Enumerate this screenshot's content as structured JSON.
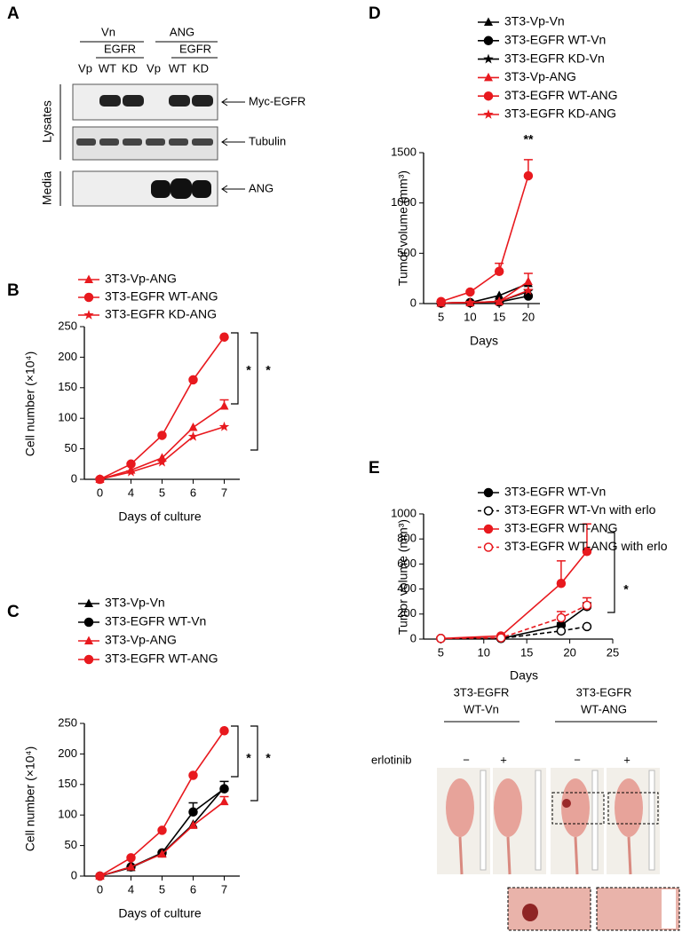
{
  "panel_a": {
    "letter": "A",
    "groups": [
      "Vn",
      "ANG"
    ],
    "subgroups": [
      "EGFR",
      "EGFR"
    ],
    "lanes": [
      "Vp",
      "WT",
      "KD",
      "Vp",
      "WT",
      "KD"
    ],
    "sections": [
      "Lysates",
      "Media"
    ],
    "bands": [
      "Myc-EGFR",
      "Tubulin",
      "ANG"
    ]
  },
  "chart_data": [
    {
      "type": "line",
      "panel": "B",
      "xlabel": "Days of culture",
      "ylabel": "Cell number (×10⁴)",
      "categories": [
        "0",
        "4",
        "5",
        "6",
        "7"
      ],
      "ylim": [
        0,
        250
      ],
      "yticks": [
        0,
        50,
        100,
        150,
        200,
        250
      ],
      "series": [
        {
          "name": "3T3-Vp-ANG",
          "color": "#e8191e",
          "marker": "triangle",
          "values": [
            0,
            15,
            35,
            85,
            120
          ],
          "errors": [
            null,
            null,
            null,
            null,
            10
          ]
        },
        {
          "name": "3T3-EGFR WT-ANG",
          "color": "#e8191e",
          "marker": "circle",
          "values": [
            0,
            25,
            72,
            163,
            233
          ],
          "errors": [
            null,
            null,
            null,
            null,
            null
          ]
        },
        {
          "name": "3T3-EGFR KD-ANG",
          "color": "#e8191e",
          "marker": "star",
          "values": [
            0,
            12,
            28,
            70,
            86
          ],
          "errors": [
            null,
            null,
            null,
            null,
            null
          ]
        }
      ],
      "annotations": [
        "*",
        "*"
      ]
    },
    {
      "type": "line",
      "panel": "C",
      "xlabel": "Days of culture",
      "ylabel": "Cell number (×10⁴)",
      "categories": [
        "0",
        "4",
        "5",
        "6",
        "7"
      ],
      "ylim": [
        0,
        250
      ],
      "yticks": [
        0,
        50,
        100,
        150,
        200,
        250
      ],
      "series": [
        {
          "name": "3T3-Vp-Vn",
          "color": "#000000",
          "marker": "triangle",
          "values": [
            0,
            14,
            37,
            85,
            145
          ],
          "errors": [
            null,
            null,
            null,
            null,
            null
          ]
        },
        {
          "name": "3T3-EGFR WT-Vn",
          "color": "#000000",
          "marker": "circle",
          "values": [
            0,
            15,
            38,
            105,
            143
          ],
          "errors": [
            null,
            null,
            null,
            15,
            12
          ]
        },
        {
          "name": "3T3-Vp-ANG",
          "color": "#e8191e",
          "marker": "triangle",
          "values": [
            0,
            15,
            36,
            83,
            122
          ],
          "errors": [
            null,
            null,
            null,
            null,
            8
          ]
        },
        {
          "name": "3T3-EGFR WT-ANG",
          "color": "#e8191e",
          "marker": "circle",
          "values": [
            0,
            30,
            75,
            165,
            238
          ],
          "errors": [
            null,
            null,
            null,
            null,
            null
          ]
        }
      ],
      "annotations": [
        "*",
        "*"
      ]
    },
    {
      "type": "line",
      "panel": "D",
      "xlabel": "Days",
      "ylabel": "Tumor volume (mm³)",
      "x": [
        5,
        10,
        15,
        20
      ],
      "xlim": [
        2,
        22
      ],
      "xticks": [
        5,
        10,
        15,
        20
      ],
      "ylim": [
        0,
        1500
      ],
      "yticks": [
        0,
        500,
        1000,
        1500
      ],
      "series": [
        {
          "name": "3T3-Vp-Vn",
          "color": "#000000",
          "marker": "triangle",
          "values": [
            5,
            10,
            80,
            200
          ],
          "errors": [
            null,
            null,
            null,
            null
          ]
        },
        {
          "name": "3T3-EGFR WT-Vn",
          "color": "#000000",
          "marker": "circle",
          "values": [
            5,
            10,
            15,
            75
          ],
          "errors": [
            null,
            null,
            null,
            null
          ]
        },
        {
          "name": "3T3-EGFR KD-Vn",
          "color": "#000000",
          "marker": "star",
          "values": [
            5,
            10,
            20,
            120
          ],
          "errors": [
            null,
            null,
            null,
            null
          ]
        },
        {
          "name": "3T3-Vp-ANG",
          "color": "#e8191e",
          "marker": "triangle",
          "values": [
            5,
            10,
            20,
            220
          ],
          "errors": [
            null,
            null,
            null,
            80
          ]
        },
        {
          "name": "3T3-EGFR WT-ANG",
          "color": "#e8191e",
          "marker": "circle",
          "values": [
            20,
            115,
            320,
            1270
          ],
          "errors": [
            null,
            null,
            80,
            160
          ]
        },
        {
          "name": "3T3-EGFR KD-ANG",
          "color": "#e8191e",
          "marker": "star",
          "values": [
            5,
            10,
            20,
            130
          ],
          "errors": [
            null,
            null,
            null,
            null
          ]
        }
      ],
      "annotations": [
        "**"
      ]
    },
    {
      "type": "line",
      "panel": "E",
      "xlabel": "Days",
      "ylabel": "Tumor volume (mm³)",
      "x": [
        5,
        12,
        19,
        22
      ],
      "xlim": [
        3,
        25
      ],
      "xticks": [
        5,
        10,
        15,
        20,
        25
      ],
      "ylim": [
        0,
        1000
      ],
      "yticks": [
        0,
        200,
        400,
        600,
        800,
        1000
      ],
      "series": [
        {
          "name": "3T3-EGFR WT-Vn",
          "color": "#000000",
          "marker": "circle",
          "values": [
            5,
            5,
            110,
            260
          ],
          "errors": [
            null,
            null,
            20,
            30
          ]
        },
        {
          "name": "3T3-EGFR WT-Vn with erlo",
          "color": "#000000",
          "marker": "open-circle",
          "dashed": true,
          "values": [
            5,
            5,
            65,
            100
          ],
          "errors": [
            null,
            null,
            null,
            null
          ]
        },
        {
          "name": "3T3-EGFR WT-ANG",
          "color": "#e8191e",
          "marker": "circle",
          "values": [
            5,
            25,
            445,
            700
          ],
          "errors": [
            null,
            null,
            180,
            220
          ]
        },
        {
          "name": "3T3-EGFR WT-ANG with erlo",
          "color": "#e8191e",
          "marker": "open-circle",
          "dashed": true,
          "values": [
            5,
            10,
            170,
            270
          ],
          "errors": [
            null,
            null,
            50,
            60
          ]
        }
      ],
      "annotations": [
        "*"
      ]
    }
  ],
  "photos": {
    "groups": [
      {
        "line1": "3T3-EGFR",
        "line2": "WT-Vn"
      },
      {
        "line1": "3T3-EGFR",
        "line2": "WT-ANG"
      }
    ],
    "row_label": "erlotinib",
    "signs": [
      "−",
      "+",
      "−",
      "+"
    ]
  }
}
